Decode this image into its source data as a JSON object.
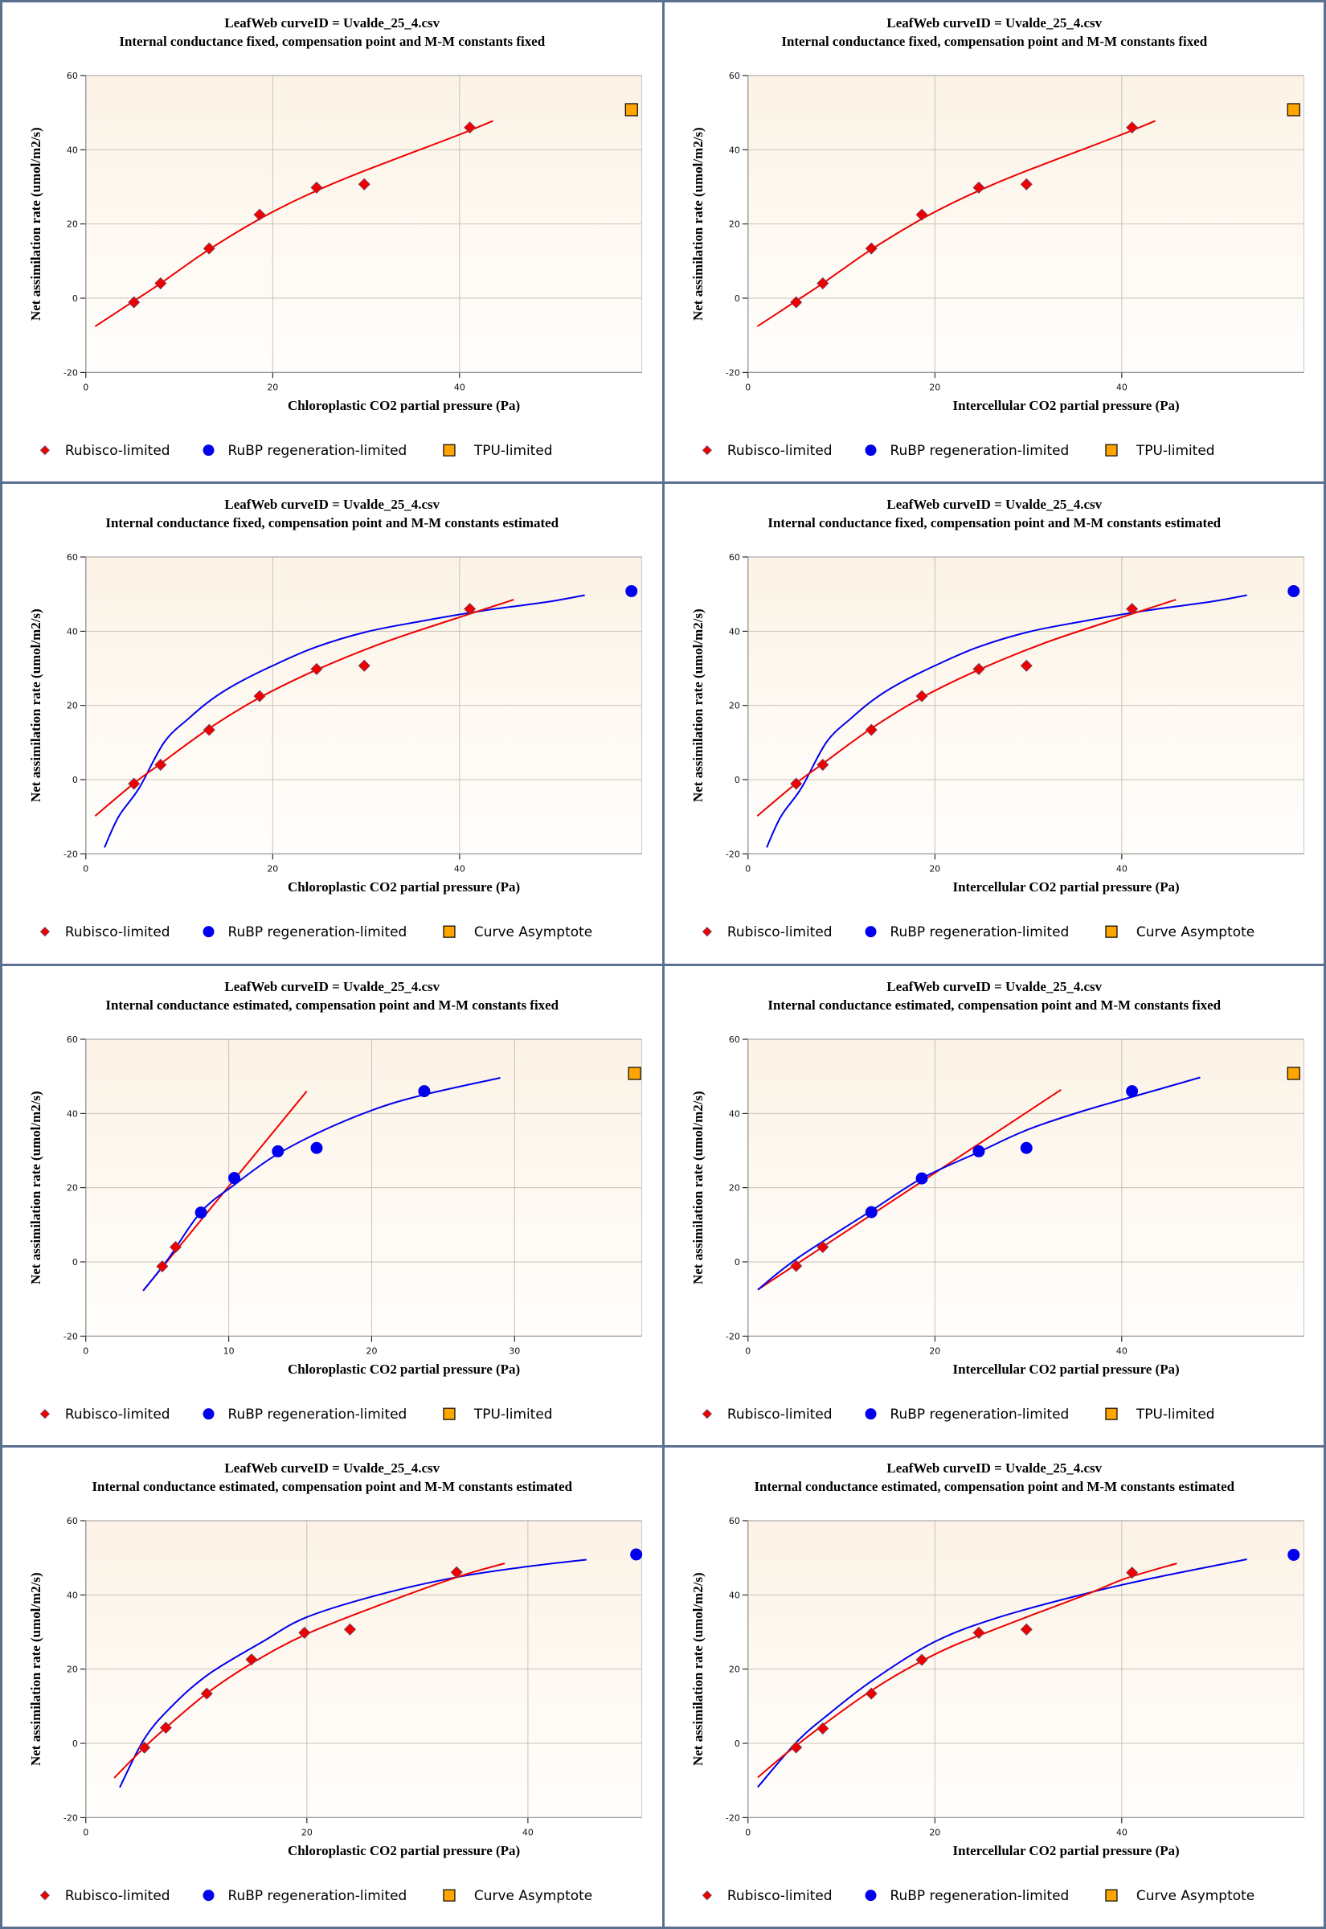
{
  "colors": {
    "rubisco": "#ee0000",
    "rubp": "#0000ee",
    "tpu": "#ffa500",
    "grid": "#c8c2b8",
    "plot_bg_top": "#fcf3e6",
    "plot_bg_bottom": "#fffefc",
    "panel_border": "#5b6f8e"
  },
  "chart_data": [
    {
      "type": "scatter",
      "title": "LeafWeb curveID = Uvalde_25_4.csv",
      "subtitle": "Internal conductance fixed, compensation point and M-M constants fixed",
      "xlabel": "Chloroplastic CO2 partial pressure (Pa)",
      "ylabel": "Net assimilation rate (umol/m2/s)",
      "xlim": [
        0,
        59.5
      ],
      "ylim": [
        -20,
        60
      ],
      "xticks": [
        0,
        20,
        40
      ],
      "yticks": [
        -20,
        0,
        20,
        40,
        60
      ],
      "grid": true,
      "legend": [
        "Rubisco-limited",
        "RuBP regeneration-limited",
        "TPU-limited"
      ],
      "legend_placement": "bottom",
      "points": [
        {
          "series": "rubisco",
          "x": 5.15,
          "y": -1.1
        },
        {
          "series": "rubisco",
          "x": 8.0,
          "y": 4.0
        },
        {
          "series": "rubisco",
          "x": 13.2,
          "y": 13.4
        },
        {
          "series": "rubisco",
          "x": 18.6,
          "y": 22.5
        },
        {
          "series": "rubisco",
          "x": 24.7,
          "y": 29.8
        },
        {
          "series": "rubisco",
          "x": 29.8,
          "y": 30.7
        },
        {
          "series": "rubisco",
          "x": 41.1,
          "y": 46.0
        }
      ],
      "marker": {
        "series": "tpu",
        "shape": "square",
        "x": 58.4,
        "y": 50.8
      },
      "curves": [
        {
          "series": "rubisco",
          "x": [
            1.0,
            5.0,
            8.0,
            13.0,
            18.0,
            22.0,
            26.0,
            30.0,
            35.0,
            40.0,
            43.6
          ],
          "y": [
            -7.6,
            -1.0,
            4.0,
            12.8,
            20.5,
            25.8,
            30.4,
            34.5,
            39.3,
            44.1,
            47.8
          ]
        }
      ]
    },
    {
      "type": "scatter",
      "title": "LeafWeb curveID = Uvalde_25_4.csv",
      "subtitle": "Internal conductance fixed, compensation point and M-M constants fixed",
      "xlabel": "Intercellular CO2 partial pressure (Pa)",
      "ylabel": "Net assimilation rate (umol/m2/s)",
      "xlim": [
        0,
        59.5
      ],
      "ylim": [
        -20,
        60
      ],
      "xticks": [
        0,
        20,
        40
      ],
      "yticks": [
        -20,
        0,
        20,
        40,
        60
      ],
      "grid": true,
      "legend": [
        "Rubisco-limited",
        "RuBP regeneration-limited",
        "TPU-limited"
      ],
      "legend_placement": "bottom",
      "points": [
        {
          "series": "rubisco",
          "x": 5.15,
          "y": -1.1
        },
        {
          "series": "rubisco",
          "x": 8.0,
          "y": 4.0
        },
        {
          "series": "rubisco",
          "x": 13.2,
          "y": 13.4
        },
        {
          "series": "rubisco",
          "x": 18.6,
          "y": 22.5
        },
        {
          "series": "rubisco",
          "x": 24.7,
          "y": 29.8
        },
        {
          "series": "rubisco",
          "x": 29.8,
          "y": 30.7
        },
        {
          "series": "rubisco",
          "x": 41.1,
          "y": 46.0
        }
      ],
      "marker": {
        "series": "tpu",
        "shape": "square",
        "x": 58.4,
        "y": 50.8
      },
      "curves": [
        {
          "series": "rubisco",
          "x": [
            1.0,
            5.0,
            8.0,
            13.0,
            18.0,
            22.0,
            26.0,
            30.0,
            35.0,
            40.0,
            43.6
          ],
          "y": [
            -7.6,
            -1.0,
            4.0,
            12.8,
            20.5,
            25.8,
            30.4,
            34.5,
            39.3,
            44.1,
            47.8
          ]
        }
      ]
    },
    {
      "type": "scatter",
      "title": "LeafWeb curveID = Uvalde_25_4.csv",
      "subtitle": "Internal conductance fixed, compensation point and M-M constants estimated",
      "xlabel": "Chloroplastic CO2 partial pressure (Pa)",
      "ylabel": "Net assimilation rate (umol/m2/s)",
      "xlim": [
        0,
        59.5
      ],
      "ylim": [
        -20,
        60
      ],
      "xticks": [
        0,
        20,
        40
      ],
      "yticks": [
        -20,
        0,
        20,
        40,
        60
      ],
      "grid": true,
      "legend": [
        "Rubisco-limited",
        "RuBP regeneration-limited",
        "Curve Asymptote"
      ],
      "legend_placement": "bottom",
      "points": [
        {
          "series": "rubisco",
          "x": 5.15,
          "y": -1.1
        },
        {
          "series": "rubisco",
          "x": 8.0,
          "y": 4.0
        },
        {
          "series": "rubisco",
          "x": 13.2,
          "y": 13.4
        },
        {
          "series": "rubisco",
          "x": 18.6,
          "y": 22.5
        },
        {
          "series": "rubisco",
          "x": 24.7,
          "y": 29.8
        },
        {
          "series": "rubisco",
          "x": 29.8,
          "y": 30.7
        },
        {
          "series": "rubisco",
          "x": 41.1,
          "y": 46.0
        }
      ],
      "marker": {
        "series": "rubp",
        "shape": "circle",
        "x": 58.4,
        "y": 50.8
      },
      "curves": [
        {
          "series": "rubp",
          "x": [
            2.0,
            3.5,
            5.7,
            8.4,
            11.1,
            13.4,
            16.1,
            20.0,
            24.6,
            30.0,
            35.9,
            42.7,
            49.4,
            53.4
          ],
          "y": [
            -18.3,
            -10.0,
            -2.3,
            10.1,
            16.7,
            21.5,
            25.8,
            30.7,
            35.7,
            39.8,
            42.7,
            45.6,
            47.9,
            49.7
          ]
        },
        {
          "series": "rubisco",
          "x": [
            1.0,
            5.1,
            8.0,
            13.2,
            18.6,
            24.6,
            31.4,
            38.2,
            45.8
          ],
          "y": [
            -9.8,
            -1.1,
            4.3,
            13.8,
            22.1,
            29.5,
            36.5,
            42.3,
            48.5
          ]
        }
      ]
    },
    {
      "type": "scatter",
      "title": "LeafWeb curveID = Uvalde_25_4.csv",
      "subtitle": "Internal conductance fixed, compensation point and M-M constants estimated",
      "xlabel": "Intercellular CO2 partial pressure (Pa)",
      "ylabel": "Net assimilation rate (umol/m2/s)",
      "xlim": [
        0,
        59.5
      ],
      "ylim": [
        -20,
        60
      ],
      "xticks": [
        0,
        20,
        40
      ],
      "yticks": [
        -20,
        0,
        20,
        40,
        60
      ],
      "grid": true,
      "legend": [
        "Rubisco-limited",
        "RuBP regeneration-limited",
        "Curve Asymptote"
      ],
      "legend_placement": "bottom",
      "points": [
        {
          "series": "rubisco",
          "x": 5.15,
          "y": -1.1
        },
        {
          "series": "rubisco",
          "x": 8.0,
          "y": 4.0
        },
        {
          "series": "rubisco",
          "x": 13.2,
          "y": 13.4
        },
        {
          "series": "rubisco",
          "x": 18.6,
          "y": 22.5
        },
        {
          "series": "rubisco",
          "x": 24.7,
          "y": 29.8
        },
        {
          "series": "rubisco",
          "x": 29.8,
          "y": 30.7
        },
        {
          "series": "rubisco",
          "x": 41.1,
          "y": 46.0
        }
      ],
      "marker": {
        "series": "rubp",
        "shape": "circle",
        "x": 58.4,
        "y": 50.8
      },
      "curves": [
        {
          "series": "rubp",
          "x": [
            2.0,
            3.5,
            5.7,
            8.4,
            11.1,
            13.4,
            16.1,
            20.0,
            24.6,
            30.0,
            35.9,
            42.7,
            49.4,
            53.4
          ],
          "y": [
            -18.3,
            -10.0,
            -2.3,
            10.1,
            16.7,
            21.5,
            25.8,
            30.7,
            35.7,
            39.8,
            42.7,
            45.6,
            47.9,
            49.7
          ]
        },
        {
          "series": "rubisco",
          "x": [
            1.0,
            5.1,
            8.0,
            13.2,
            18.6,
            24.6,
            31.4,
            38.2,
            45.8
          ],
          "y": [
            -9.8,
            -1.1,
            4.3,
            13.8,
            22.1,
            29.5,
            36.5,
            42.3,
            48.5
          ]
        }
      ]
    },
    {
      "type": "scatter",
      "title": "LeafWeb curveID = Uvalde_25_4.csv",
      "subtitle": "Internal conductance estimated, compensation point and M-M constants fixed",
      "xlabel": "Chloroplastic CO2 partial pressure (Pa)",
      "ylabel": "Net assimilation rate (umol/m2/s)",
      "xlim": [
        0,
        38.9
      ],
      "ylim": [
        -20,
        60
      ],
      "xticks": [
        0,
        10,
        20,
        30
      ],
      "yticks": [
        -20,
        0,
        20,
        40,
        60
      ],
      "grid": true,
      "legend": [
        "Rubisco-limited",
        "RuBP regeneration-limited",
        "TPU-limited"
      ],
      "legend_placement": "bottom",
      "points": [
        {
          "series": "rubisco",
          "x": 5.35,
          "y": -1.2
        },
        {
          "series": "rubisco",
          "x": 6.28,
          "y": 4.0
        },
        {
          "series": "rubp",
          "x": 8.06,
          "y": 13.3
        },
        {
          "series": "rubp",
          "x": 10.39,
          "y": 22.6
        },
        {
          "series": "rubp",
          "x": 13.44,
          "y": 29.8
        },
        {
          "series": "rubp",
          "x": 16.15,
          "y": 30.7
        },
        {
          "series": "rubp",
          "x": 23.68,
          "y": 46.0
        }
      ],
      "marker": {
        "series": "tpu",
        "shape": "square",
        "x": 38.4,
        "y": 50.8
      },
      "curves": [
        {
          "series": "rubisco",
          "x": [
            4.0,
            15.46
          ],
          "y": [
            -7.8,
            46.0
          ]
        },
        {
          "series": "rubp",
          "x": [
            4.03,
            5.8,
            8.06,
            10.4,
            13.1,
            16.1,
            19.9,
            23.4,
            29.0
          ],
          "y": [
            -7.7,
            1.0,
            13.5,
            20.8,
            28.3,
            34.5,
            40.7,
            44.8,
            49.6
          ]
        }
      ]
    },
    {
      "type": "scatter",
      "title": "LeafWeb curveID = Uvalde_25_4.csv",
      "subtitle": "Internal conductance estimated, compensation point and M-M constants fixed",
      "xlabel": "Intercellular CO2 partial pressure (Pa)",
      "ylabel": "Net assimilation rate (umol/m2/s)",
      "xlim": [
        0,
        59.5
      ],
      "ylim": [
        -20,
        60
      ],
      "xticks": [
        0,
        20,
        40
      ],
      "yticks": [
        -20,
        0,
        20,
        40,
        60
      ],
      "grid": true,
      "legend": [
        "Rubisco-limited",
        "RuBP regeneration-limited",
        "TPU-limited"
      ],
      "legend_placement": "bottom",
      "points": [
        {
          "series": "rubisco",
          "x": 5.15,
          "y": -1.1
        },
        {
          "series": "rubisco",
          "x": 8.0,
          "y": 4.0
        },
        {
          "series": "rubp",
          "x": 13.2,
          "y": 13.4
        },
        {
          "series": "rubp",
          "x": 18.6,
          "y": 22.5
        },
        {
          "series": "rubp",
          "x": 24.7,
          "y": 29.8
        },
        {
          "series": "rubp",
          "x": 29.8,
          "y": 30.7
        },
        {
          "series": "rubp",
          "x": 41.1,
          "y": 46.0
        }
      ],
      "marker": {
        "series": "tpu",
        "shape": "square",
        "x": 58.4,
        "y": 50.8
      },
      "curves": [
        {
          "series": "rubisco",
          "x": [
            1.04,
            33.5
          ],
          "y": [
            -7.5,
            46.4
          ]
        },
        {
          "series": "rubp",
          "x": [
            1.04,
            5.3,
            13.2,
            18.6,
            24.6,
            30.0,
            35.9,
            42.7,
            48.4
          ],
          "y": [
            -7.5,
            1.0,
            13.8,
            22.5,
            29.5,
            35.7,
            40.7,
            45.6,
            49.7
          ]
        }
      ]
    },
    {
      "type": "scatter",
      "title": "LeafWeb curveID = Uvalde_25_4.csv",
      "subtitle": "Internal conductance estimated, compensation point and M-M constants estimated",
      "xlabel": "Chloroplastic CO2 partial pressure (Pa)",
      "ylabel": "Net assimilation rate (umol/m2/s)",
      "xlim": [
        0,
        50.3
      ],
      "ylim": [
        -20,
        60
      ],
      "xticks": [
        0,
        20,
        40
      ],
      "yticks": [
        -20,
        0,
        20,
        40,
        60
      ],
      "grid": true,
      "legend": [
        "Rubisco-limited",
        "RuBP regeneration-limited",
        "Curve Asymptote"
      ],
      "legend_placement": "bottom",
      "points": [
        {
          "series": "rubisco",
          "x": 5.3,
          "y": -1.15
        },
        {
          "series": "rubisco",
          "x": 7.24,
          "y": 4.2
        },
        {
          "series": "rubisco",
          "x": 10.94,
          "y": 13.4
        },
        {
          "series": "rubisco",
          "x": 14.99,
          "y": 22.6
        },
        {
          "series": "rubisco",
          "x": 19.78,
          "y": 29.8
        },
        {
          "series": "rubisco",
          "x": 23.9,
          "y": 30.7
        },
        {
          "series": "rubisco",
          "x": 33.55,
          "y": 46.1
        }
      ],
      "marker": {
        "series": "rubp",
        "shape": "circle",
        "x": 49.8,
        "y": 50.9
      },
      "curves": [
        {
          "series": "rubp",
          "x": [
            3.07,
            5.25,
            7.55,
            11.0,
            16.0,
            20.0,
            26.7,
            33.6,
            40.1,
            45.3
          ],
          "y": [
            -11.9,
            1.0,
            9.3,
            18.4,
            27.4,
            34.0,
            40.2,
            44.8,
            47.7,
            49.5
          ]
        },
        {
          "series": "rubisco",
          "x": [
            2.57,
            5.25,
            7.36,
            11.0,
            15.2,
            20.0,
            26.7,
            33.6,
            37.9
          ],
          "y": [
            -9.3,
            -1.2,
            4.5,
            13.6,
            21.9,
            29.5,
            37.4,
            44.8,
            48.5
          ]
        }
      ]
    },
    {
      "type": "scatter",
      "title": "LeafWeb curveID = Uvalde_25_4.csv",
      "subtitle": "Internal conductance estimated, compensation point and M-M constants estimated",
      "xlabel": "Intercellular CO2 partial pressure (Pa)",
      "ylabel": "Net assimilation rate (umol/m2/s)",
      "xlim": [
        0,
        59.5
      ],
      "ylim": [
        -20,
        60
      ],
      "xticks": [
        0,
        20,
        40
      ],
      "yticks": [
        -20,
        0,
        20,
        40,
        60
      ],
      "grid": true,
      "legend": [
        "Rubisco-limited",
        "RuBP regeneration-limited",
        "Curve Asymptote"
      ],
      "legend_placement": "bottom",
      "points": [
        {
          "series": "rubisco",
          "x": 5.15,
          "y": -1.1
        },
        {
          "series": "rubisco",
          "x": 8.0,
          "y": 4.0
        },
        {
          "series": "rubisco",
          "x": 13.2,
          "y": 13.4
        },
        {
          "series": "rubisco",
          "x": 18.6,
          "y": 22.5
        },
        {
          "series": "rubisco",
          "x": 24.7,
          "y": 29.8
        },
        {
          "series": "rubisco",
          "x": 29.8,
          "y": 30.7
        },
        {
          "series": "rubisco",
          "x": 41.1,
          "y": 46.0
        }
      ],
      "marker": {
        "series": "rubp",
        "shape": "circle",
        "x": 58.4,
        "y": 50.8
      },
      "curves": [
        {
          "series": "rubp",
          "x": [
            1.04,
            5.3,
            8.9,
            13.4,
            20.0,
            26.9,
            35.9,
            42.7,
            53.4
          ],
          "y": [
            -11.8,
            0.6,
            8.4,
            17.1,
            27.4,
            34.0,
            40.2,
            44.2,
            49.6
          ]
        },
        {
          "series": "rubisco",
          "x": [
            1.04,
            5.3,
            13.2,
            20.1,
            26.9,
            35.9,
            40.4,
            45.9
          ],
          "y": [
            -9.2,
            -0.3,
            14.2,
            24.1,
            31.2,
            39.8,
            44.4,
            48.5
          ]
        }
      ]
    }
  ]
}
